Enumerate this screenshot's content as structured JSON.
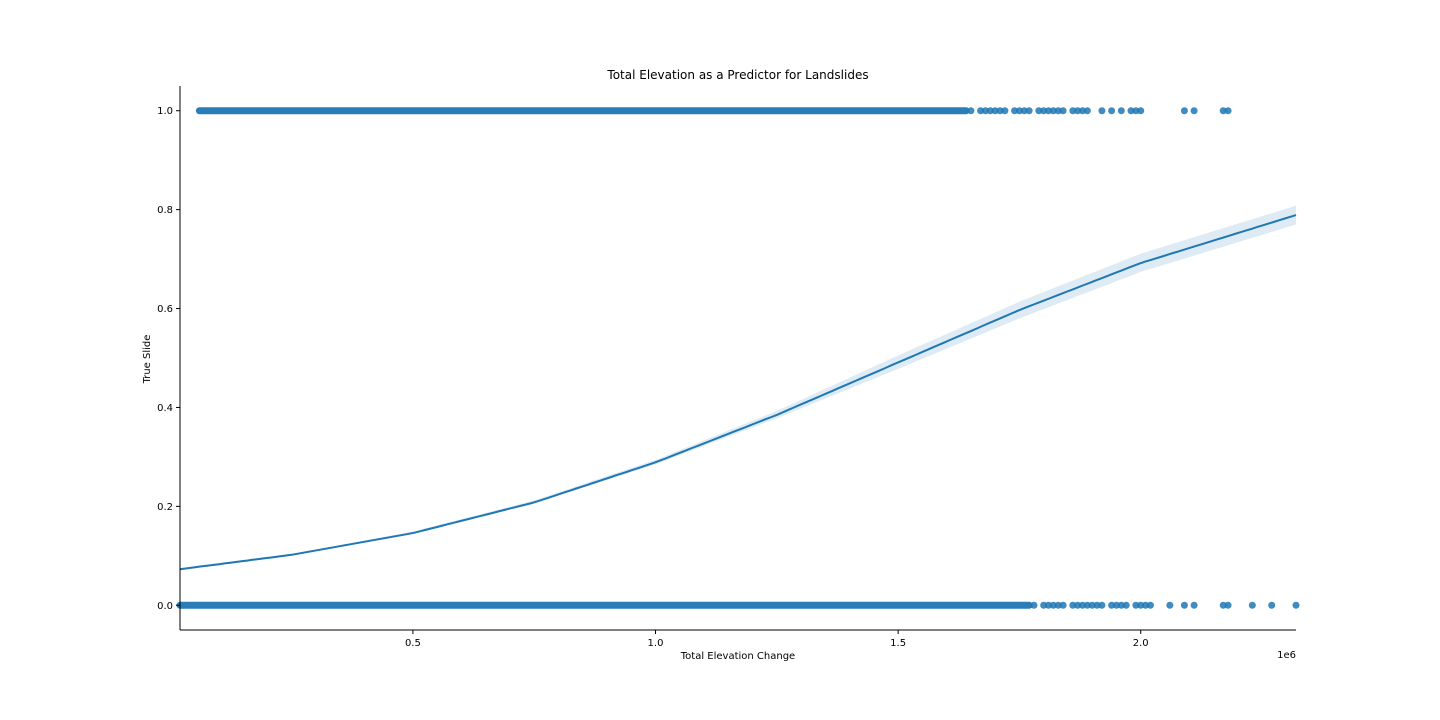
{
  "chart_data": {
    "type": "scatter",
    "title": "Total Elevation as a Predictor for Landslides",
    "xlabel": "Total Elevation Change",
    "ylabel": "True Slide",
    "x_offset_label": "1e6",
    "xlim": [
      0.02,
      2.32
    ],
    "ylim": [
      -0.05,
      1.05
    ],
    "xticks": [
      0.5,
      1.0,
      1.5,
      2.0
    ],
    "xtick_labels": [
      "0.5",
      "1.0",
      "1.5",
      "2.0"
    ],
    "yticks": [
      0.0,
      0.2,
      0.4,
      0.6,
      0.8,
      1.0
    ],
    "ytick_labels": [
      "0.0",
      "0.2",
      "0.4",
      "0.6",
      "0.8",
      "1.0"
    ],
    "grid": false,
    "colors": {
      "points": "#1f77b4",
      "line": "#1f77b4",
      "band": "#1f77b4"
    },
    "series": [
      {
        "kind": "scatter",
        "y_value": 1.0,
        "dense_range": [
          0.06,
          1.64
        ],
        "x": [
          1.65,
          1.67,
          1.68,
          1.69,
          1.7,
          1.71,
          1.72,
          1.74,
          1.75,
          1.76,
          1.77,
          1.79,
          1.8,
          1.81,
          1.82,
          1.83,
          1.84,
          1.86,
          1.87,
          1.88,
          1.89,
          1.92,
          1.94,
          1.96,
          1.98,
          1.99,
          2.0,
          2.09,
          2.11,
          2.17,
          2.18
        ]
      },
      {
        "kind": "scatter",
        "y_value": 0.0,
        "dense_range": [
          0.02,
          1.77
        ],
        "x": [
          1.78,
          1.8,
          1.81,
          1.82,
          1.83,
          1.84,
          1.86,
          1.87,
          1.88,
          1.89,
          1.9,
          1.91,
          1.92,
          1.94,
          1.95,
          1.96,
          1.97,
          1.99,
          2.0,
          2.01,
          2.02,
          2.06,
          2.09,
          2.11,
          2.17,
          2.18,
          2.23,
          2.27,
          2.32
        ]
      },
      {
        "kind": "logistic-fit",
        "x": [
          0.02,
          0.25,
          0.5,
          0.75,
          1.0,
          1.25,
          1.5,
          1.75,
          2.0,
          2.32
        ],
        "y": [
          0.073,
          0.102,
          0.146,
          0.208,
          0.289,
          0.385,
          0.491,
          0.597,
          0.692,
          0.789
        ],
        "ci_lower": [
          0.071,
          0.1,
          0.144,
          0.206,
          0.285,
          0.378,
          0.478,
          0.58,
          0.674,
          0.77
        ],
        "ci_upper": [
          0.075,
          0.104,
          0.149,
          0.212,
          0.294,
          0.393,
          0.505,
          0.614,
          0.711,
          0.808
        ]
      }
    ]
  }
}
